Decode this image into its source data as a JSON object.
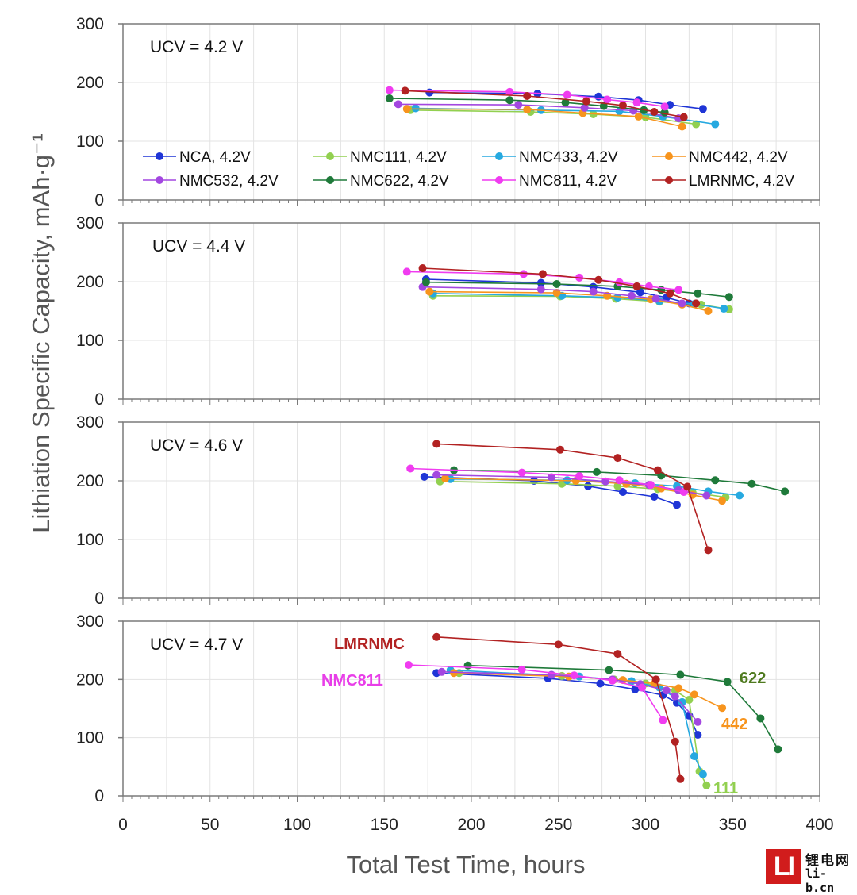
{
  "chart_data": [
    {
      "type": "line",
      "panel_label": "UCV = 4.2 V",
      "ylim": [
        0,
        300
      ],
      "xlim": [
        0,
        400
      ],
      "ylabel": "Lithiation Specific Capacity, mAh·g⁻¹",
      "legend": [
        "NCA, 4.2V",
        "NMC111, 4.2V",
        "NMC433, 4.2V",
        "NMC442, 4.2V",
        "NMC532, 4.2V",
        "NMC622, 4.2V",
        "NMC811, 4.2V",
        "LMRNMC, 4.2V"
      ],
      "series": [
        {
          "name": "NCA",
          "x": [
            176,
            238,
            273,
            296,
            314,
            333
          ],
          "y": [
            183,
            181,
            176,
            170,
            162,
            155
          ]
        },
        {
          "name": "NMC111",
          "x": [
            165,
            234,
            270,
            300,
            329
          ],
          "y": [
            153,
            150,
            146,
            141,
            129
          ]
        },
        {
          "name": "NMC433",
          "x": [
            168,
            240,
            285,
            310,
            340
          ],
          "y": [
            156,
            153,
            151,
            142,
            129
          ]
        },
        {
          "name": "NMC442",
          "x": [
            163,
            232,
            264,
            296,
            321
          ],
          "y": [
            155,
            154,
            148,
            142,
            125
          ]
        },
        {
          "name": "NMC532",
          "x": [
            158,
            227,
            265,
            293,
            319
          ],
          "y": [
            163,
            162,
            157,
            152,
            139
          ]
        },
        {
          "name": "NMC622",
          "x": [
            153,
            222,
            254,
            276,
            299,
            311
          ],
          "y": [
            173,
            170,
            166,
            160,
            153,
            149
          ]
        },
        {
          "name": "NMC811",
          "x": [
            153,
            222,
            255,
            278,
            295,
            311
          ],
          "y": [
            187,
            184,
            179,
            171,
            166,
            159
          ]
        },
        {
          "name": "LMRNMC",
          "x": [
            162,
            232,
            266,
            287,
            305,
            322
          ],
          "y": [
            186,
            177,
            168,
            161,
            150,
            141
          ]
        }
      ]
    },
    {
      "type": "line",
      "panel_label": "UCV = 4.4 V",
      "ylim": [
        0,
        300
      ],
      "xlim": [
        0,
        400
      ],
      "series": [
        {
          "name": "NCA",
          "x": [
            174,
            240,
            270,
            297,
            312,
            325
          ],
          "y": [
            204,
            198,
            191,
            182,
            173,
            163
          ]
        },
        {
          "name": "NMC111",
          "x": [
            178,
            251,
            283,
            308,
            332,
            348
          ],
          "y": [
            176,
            175,
            171,
            166,
            161,
            153
          ]
        },
        {
          "name": "NMC433",
          "x": [
            178,
            252,
            284,
            308,
            328,
            345
          ],
          "y": [
            180,
            176,
            173,
            167,
            162,
            154
          ]
        },
        {
          "name": "NMC442",
          "x": [
            176,
            249,
            278,
            303,
            321,
            336
          ],
          "y": [
            183,
            181,
            176,
            170,
            161,
            150
          ]
        },
        {
          "name": "NMC532",
          "x": [
            172,
            240,
            270,
            292,
            306,
            321
          ],
          "y": [
            191,
            187,
            183,
            176,
            171,
            163
          ]
        },
        {
          "name": "NMC622",
          "x": [
            174,
            249,
            284,
            309,
            330,
            348
          ],
          "y": [
            199,
            196,
            192,
            186,
            180,
            174
          ]
        },
        {
          "name": "NMC811",
          "x": [
            163,
            230,
            262,
            285,
            302,
            319
          ],
          "y": [
            217,
            213,
            207,
            199,
            192,
            186
          ]
        },
        {
          "name": "LMRNMC",
          "x": [
            172,
            241,
            273,
            295,
            314,
            329
          ],
          "y": [
            223,
            213,
            203,
            192,
            180,
            163
          ]
        }
      ]
    },
    {
      "type": "line",
      "panel_label": "UCV = 4.6 V",
      "ylim": [
        0,
        300
      ],
      "xlim": [
        0,
        400
      ],
      "series": [
        {
          "name": "NCA",
          "x": [
            173,
            236,
            267,
            287,
            305,
            318
          ],
          "y": [
            207,
            200,
            191,
            181,
            173,
            159
          ]
        },
        {
          "name": "NMC111",
          "x": [
            182,
            252,
            284,
            307,
            327,
            346
          ],
          "y": [
            199,
            195,
            191,
            186,
            180,
            172
          ]
        },
        {
          "name": "NMC433",
          "x": [
            188,
            255,
            294,
            318,
            336,
            354
          ],
          "y": [
            203,
            201,
            196,
            191,
            182,
            175
          ]
        },
        {
          "name": "NMC442",
          "x": [
            185,
            260,
            289,
            309,
            327,
            344
          ],
          "y": [
            204,
            200,
            195,
            187,
            176,
            166
          ]
        },
        {
          "name": "NMC532",
          "x": [
            180,
            246,
            277,
            302,
            319,
            335
          ],
          "y": [
            210,
            206,
            199,
            193,
            184,
            175
          ]
        },
        {
          "name": "NMC622",
          "x": [
            190,
            272,
            309,
            340,
            361,
            380
          ],
          "y": [
            218,
            215,
            209,
            201,
            195,
            182
          ]
        },
        {
          "name": "NMC811",
          "x": [
            165,
            229,
            262,
            285,
            303,
            322
          ],
          "y": [
            221,
            214,
            208,
            201,
            193,
            181
          ]
        },
        {
          "name": "LMRNMC",
          "x": [
            180,
            251,
            284,
            307,
            324,
            336
          ],
          "y": [
            263,
            253,
            239,
            218,
            190,
            82
          ]
        }
      ]
    },
    {
      "type": "line",
      "panel_label": "UCV = 4.7 V",
      "ylim": [
        0,
        300
      ],
      "xlim": [
        0,
        400
      ],
      "xlabel": "Total Test Time, hours",
      "xticks": [
        "0",
        "50",
        "100",
        "150",
        "200",
        "250",
        "300",
        "350",
        "400"
      ],
      "yticks": [
        "0",
        "100",
        "200",
        "300"
      ],
      "series": [
        {
          "name": "NCA",
          "x": [
            180,
            244,
            274,
            294,
            310,
            318,
            325,
            330
          ],
          "y": [
            211,
            202,
            193,
            183,
            173,
            160,
            138,
            105
          ]
        },
        {
          "name": "NMC111",
          "x": [
            193,
            252,
            282,
            300,
            317,
            325,
            331,
            335
          ],
          "y": [
            211,
            206,
            200,
            193,
            181,
            165,
            42,
            18
          ]
        },
        {
          "name": "NMC433",
          "x": [
            188,
            262,
            292,
            308,
            321,
            328,
            333
          ],
          "y": [
            216,
            205,
            197,
            186,
            161,
            68,
            37
          ]
        },
        {
          "name": "NMC442",
          "x": [
            190,
            256,
            287,
            305,
            319,
            328,
            344
          ],
          "y": [
            211,
            205,
            199,
            193,
            185,
            174,
            151
          ]
        },
        {
          "name": "NMC532",
          "x": [
            183,
            246,
            281,
            297,
            312,
            317,
            330
          ],
          "y": [
            213,
            208,
            200,
            192,
            181,
            171,
            127
          ]
        },
        {
          "name": "NMC622",
          "x": [
            198,
            279,
            320,
            347,
            366,
            376
          ],
          "y": [
            224,
            216,
            208,
            196,
            133,
            80
          ]
        },
        {
          "name": "NMC811",
          "x": [
            164,
            229,
            259,
            281,
            298,
            310
          ],
          "y": [
            225,
            217,
            207,
            198,
            186,
            130
          ]
        },
        {
          "name": "LMRNMC",
          "x": [
            180,
            250,
            284,
            306,
            317,
            320
          ],
          "y": [
            273,
            260,
            244,
            200,
            93,
            29
          ]
        }
      ],
      "annotations": [
        {
          "text": "LMRNMC",
          "series": "LMRNMC"
        },
        {
          "text": "NMC811",
          "series": "NMC811"
        },
        {
          "text": "622",
          "series": "NMC622"
        },
        {
          "text": "442",
          "series": "NMC442"
        },
        {
          "text": "111",
          "series": "NMC111"
        }
      ]
    }
  ],
  "colors": {
    "NCA": "#1f35d6",
    "NMC111": "#92d050",
    "NMC433": "#26a9e0",
    "NMC442": "#f7941d",
    "NMC532": "#a347e0",
    "NMC622": "#1f7a3a",
    "NMC811": "#f03cf0",
    "LMRNMC": "#b22222"
  },
  "annotation_colors": {
    "LMRNMC": "#b22222",
    "NMC811": "#e83ee8",
    "NMC622": "#4f7a1f",
    "NMC442": "#f7941d",
    "NMC111": "#92d050"
  },
  "logo": {
    "mark": "LI",
    "name_cn": "锂电网",
    "url": "li-b.cn"
  }
}
